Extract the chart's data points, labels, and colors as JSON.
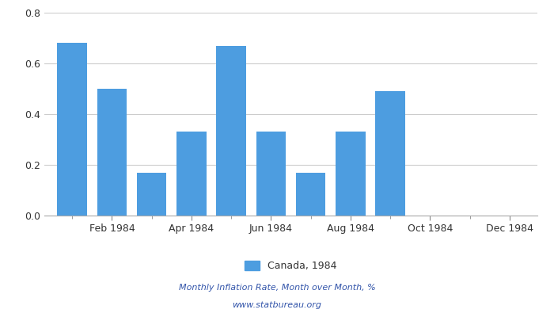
{
  "monthly_values": [
    0.68,
    0.5,
    0.17,
    0.33,
    0.67,
    0.33,
    0.17,
    0.33,
    0.49,
    0.0,
    0.0,
    0.0
  ],
  "bar_color": "#4d9de0",
  "ylim": [
    0,
    0.8
  ],
  "yticks": [
    0,
    0.2,
    0.4,
    0.6,
    0.8
  ],
  "xtick_labels": [
    "Feb 1984",
    "Apr 1984",
    "Jun 1984",
    "Aug 1984",
    "Oct 1984",
    "Dec 1984"
  ],
  "xtick_positions": [
    1,
    3,
    5,
    7,
    9,
    11
  ],
  "legend_label": "Canada, 1984",
  "footer_line1": "Monthly Inflation Rate, Month over Month, %",
  "footer_line2": "www.statbureau.org",
  "background_color": "#ffffff",
  "grid_color": "#cccccc",
  "bar_width": 0.75,
  "footer_color": "#3355aa",
  "tick_color": "#555555",
  "legend_color": "#4d9de0"
}
